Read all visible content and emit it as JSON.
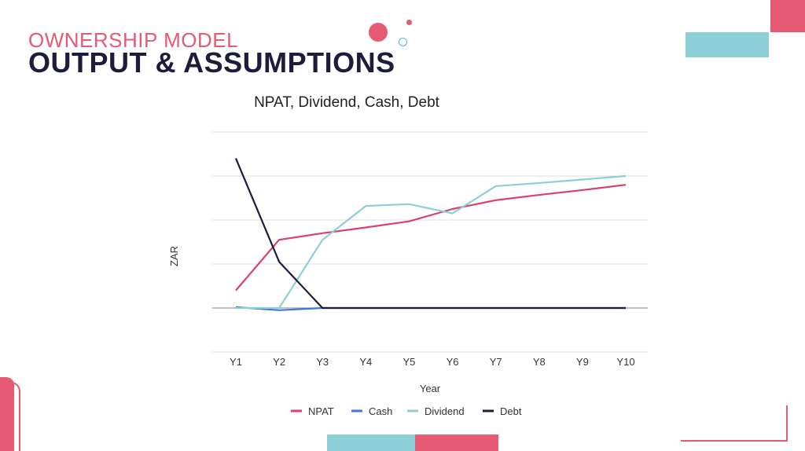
{
  "slide": {
    "subtitle": "OWNERSHIP MODEL",
    "title": "OUTPUT & ASSUMPTIONS"
  },
  "colors": {
    "pink": "#e75a74",
    "teal": "#8ccfd6",
    "navy": "#1b1d3a",
    "grid": "#dcdcdc"
  },
  "chart_data": {
    "type": "line",
    "title": "NPAT, Dividend, Cash, Debt",
    "xlabel": "Year",
    "ylabel": "ZAR",
    "categories": [
      "Y1",
      "Y2",
      "Y3",
      "Y4",
      "Y5",
      "Y6",
      "Y7",
      "Y8",
      "Y9",
      "Y10"
    ],
    "ylim": [
      -1,
      4
    ],
    "grid": true,
    "legend_position": "bottom",
    "series": [
      {
        "name": "NPAT",
        "color": "#d9416a",
        "values": [
          0.4,
          1.55,
          1.7,
          1.83,
          1.97,
          2.25,
          2.45,
          2.57,
          2.68,
          2.8
        ]
      },
      {
        "name": "Cash",
        "color": "#3b78d8",
        "values": [
          0.02,
          -0.05,
          0.0,
          0.0,
          0.0,
          0.0,
          0.0,
          0.0,
          0.0,
          0.0
        ]
      },
      {
        "name": "Dividend",
        "color": "#8ccfd6",
        "values": [
          0.0,
          0.0,
          1.55,
          2.32,
          2.36,
          2.15,
          2.77,
          2.84,
          2.92,
          3.0
        ]
      },
      {
        "name": "Debt",
        "color": "#1b1d3a",
        "values": [
          3.4,
          1.05,
          0.0,
          0.0,
          0.0,
          0.0,
          0.0,
          0.0,
          0.0,
          0.0
        ]
      }
    ]
  }
}
